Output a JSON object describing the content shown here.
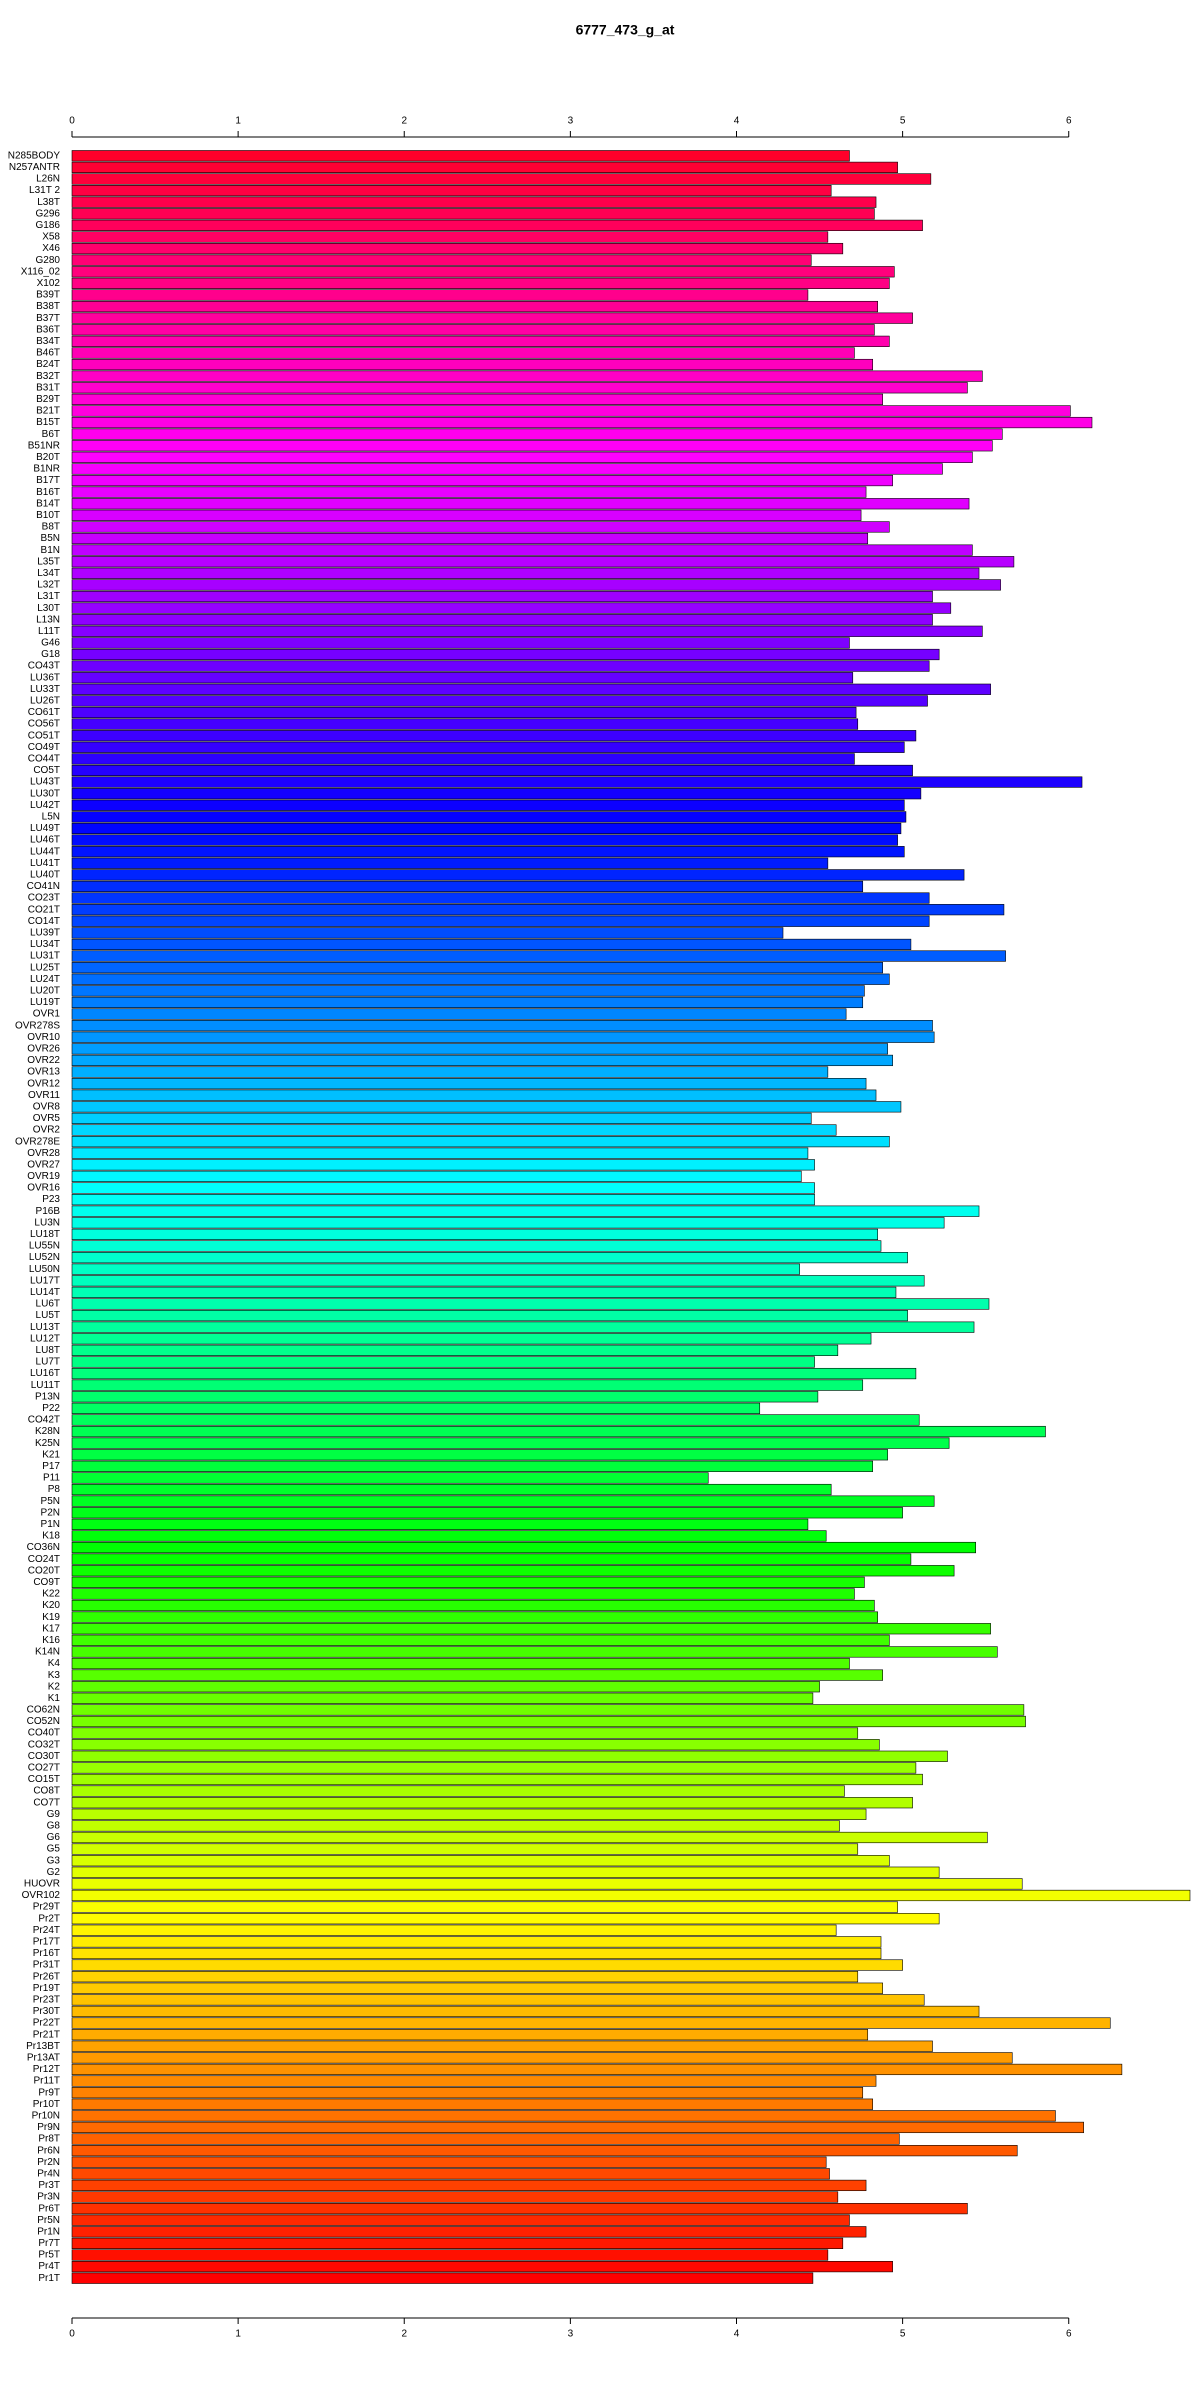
{
  "chart_data": {
    "type": "barh",
    "title": "6777_473_g_at",
    "categories": [
      "N285BODY",
      "N257ANTR",
      "L26N",
      "L31T 2",
      "L38T",
      "G296",
      "G186",
      "X58",
      "X46",
      "G280",
      "X116_02",
      "X102",
      "B39T",
      "B38T",
      "B37T",
      "B36T",
      "B34T",
      "B46T",
      "B24T",
      "B32T",
      "B31T",
      "B29T",
      "B21T",
      "B15T",
      "B6T",
      "B51NR",
      "B20T",
      "B1NR",
      "B17T",
      "B16T",
      "B14T",
      "B10T",
      "B8T",
      "B5N",
      "B1N",
      "L35T",
      "L34T",
      "L32T",
      "L31T",
      "L30T",
      "L13N",
      "L11T",
      "G46",
      "G18",
      "CO43T",
      "LU36T",
      "LU33T",
      "LU26T",
      "CO61T",
      "CO56T",
      "CO51T",
      "CO49T",
      "CO44T",
      "CO5T",
      "LU43T",
      "LU30T",
      "LU42T",
      "L5N",
      "LU49T",
      "LU46T",
      "LU44T",
      "LU41T",
      "LU40T",
      "CO41N",
      "CO23T",
      "CO21T",
      "CO14T",
      "LU39T",
      "LU34T",
      "LU31T",
      "LU25T",
      "LU24T",
      "LU20T",
      "LU19T",
      "OVR1",
      "OVR278S",
      "OVR10",
      "OVR26",
      "OVR22",
      "OVR13",
      "OVR12",
      "OVR11",
      "OVR8",
      "OVR5",
      "OVR2",
      "OVR278E",
      "OVR28",
      "OVR27",
      "OVR19",
      "OVR16",
      "P23",
      "P16B",
      "LU3N",
      "LU18T",
      "LU55N",
      "LU52N",
      "LU50N",
      "LU17T",
      "LU14T",
      "LU6T",
      "LU5T",
      "LU13T",
      "LU12T",
      "LU8T",
      "LU7T",
      "LU16T",
      "LU11T",
      "P13N",
      "P22",
      "CO42T",
      "K28N",
      "K25N",
      "K21",
      "P17",
      "P11",
      "P8",
      "P5N",
      "P2N",
      "P1N",
      "K18",
      "CO36N",
      "CO24T",
      "CO20T",
      "CO9T",
      "K22",
      "K20",
      "K19",
      "K17",
      "K16",
      "K14N",
      "K4",
      "K3",
      "K2",
      "K1",
      "CO62N",
      "CO52N",
      "CO40T",
      "CO32T",
      "CO30T",
      "CO27T",
      "CO15T",
      "CO8T",
      "CO7T",
      "G9",
      "G8",
      "G6",
      "G5",
      "G3",
      "G2",
      "HUOVR",
      "OVR102",
      "Pr29T",
      "Pr2T",
      "Pr24T",
      "Pr17T",
      "Pr16T",
      "Pr31T",
      "Pr26T",
      "Pr19T",
      "Pr23T",
      "Pr30T",
      "Pr22T",
      "Pr21T",
      "Pr13BT",
      "Pr13AT",
      "Pr12T",
      "Pr11T",
      "Pr9T",
      "Pr10T",
      "Pr10N",
      "Pr9N",
      "Pr8T",
      "Pr6N",
      "Pr2N",
      "Pr4N",
      "Pr3T",
      "Pr3N",
      "Pr6T",
      "Pr5N",
      "Pr1N",
      "Pr7T",
      "Pr5T",
      "Pr4T",
      "Pr1T"
    ],
    "values": [
      4.68,
      4.97,
      5.17,
      4.57,
      4.84,
      4.83,
      5.12,
      4.55,
      4.64,
      4.45,
      4.95,
      4.92,
      4.43,
      4.85,
      5.06,
      4.83,
      4.92,
      4.71,
      4.82,
      5.48,
      5.39,
      4.88,
      6.01,
      6.14,
      5.6,
      5.54,
      5.42,
      5.24,
      4.94,
      4.78,
      5.4,
      4.75,
      4.92,
      4.79,
      5.42,
      5.67,
      5.46,
      5.59,
      5.18,
      5.29,
      5.18,
      5.48,
      4.68,
      5.22,
      5.16,
      4.7,
      5.53,
      5.15,
      4.72,
      4.73,
      5.08,
      5.01,
      4.71,
      5.06,
      6.08,
      5.11,
      5.01,
      5.02,
      4.99,
      4.97,
      5.01,
      4.55,
      5.37,
      4.76,
      5.16,
      5.61,
      5.16,
      4.28,
      5.05,
      5.62,
      4.88,
      4.92,
      4.77,
      4.76,
      4.66,
      5.18,
      5.19,
      4.91,
      4.94,
      4.55,
      4.78,
      4.84,
      4.99,
      4.45,
      4.6,
      4.92,
      4.43,
      4.47,
      4.39,
      4.47,
      4.47,
      5.46,
      5.25,
      4.85,
      4.87,
      5.03,
      4.38,
      5.13,
      4.96,
      5.52,
      5.03,
      5.43,
      4.81,
      4.61,
      4.47,
      5.08,
      4.76,
      4.49,
      4.14,
      5.1,
      5.86,
      5.28,
      4.91,
      4.82,
      3.83,
      4.57,
      5.19,
      5.0,
      4.43,
      4.54,
      5.44,
      5.05,
      5.31,
      4.77,
      4.71,
      4.83,
      4.85,
      5.53,
      4.92,
      5.57,
      4.68,
      4.88,
      4.5,
      4.46,
      5.73,
      5.74,
      4.73,
      4.86,
      5.27,
      5.08,
      5.12,
      4.65,
      5.06,
      4.78,
      4.62,
      5.51,
      4.73,
      4.92,
      5.22,
      5.72,
      6.73,
      4.97,
      5.22,
      4.6,
      4.87,
      4.87,
      5.0,
      4.73,
      4.88,
      5.13,
      5.46,
      6.25,
      4.79,
      5.18,
      5.66,
      6.32,
      4.84,
      4.76,
      4.82,
      5.92,
      6.09,
      4.98,
      5.69,
      4.54,
      4.56,
      4.78,
      4.61,
      5.39,
      4.68,
      4.78,
      4.64,
      4.55,
      4.94,
      4.46
    ],
    "xlim": [
      0,
      6.73
    ],
    "xticks": [
      0,
      1,
      2,
      3,
      4,
      5,
      6
    ],
    "color_scheme": "rainbow"
  }
}
